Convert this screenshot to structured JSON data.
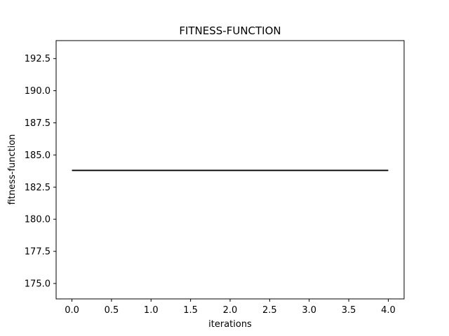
{
  "chart_data": {
    "type": "line",
    "title": "FITNESS-FUNCTION",
    "xlabel": "iterations",
    "ylabel": "fitness-function",
    "xlim": [
      -0.2,
      4.2
    ],
    "ylim": [
      173.8,
      193.9
    ],
    "x_ticks": [
      "0.0",
      "0.5",
      "1.0",
      "1.5",
      "2.0",
      "2.5",
      "3.0",
      "3.5",
      "4.0"
    ],
    "y_ticks": [
      "175.0",
      "177.5",
      "180.0",
      "182.5",
      "185.0",
      "187.5",
      "190.0",
      "192.5"
    ],
    "grid": false,
    "legend": "none",
    "series": [
      {
        "color": "#000000",
        "x": [
          0,
          1,
          2,
          3,
          4
        ],
        "y": [
          183.8,
          183.8,
          183.8,
          183.8,
          183.8
        ]
      }
    ]
  }
}
